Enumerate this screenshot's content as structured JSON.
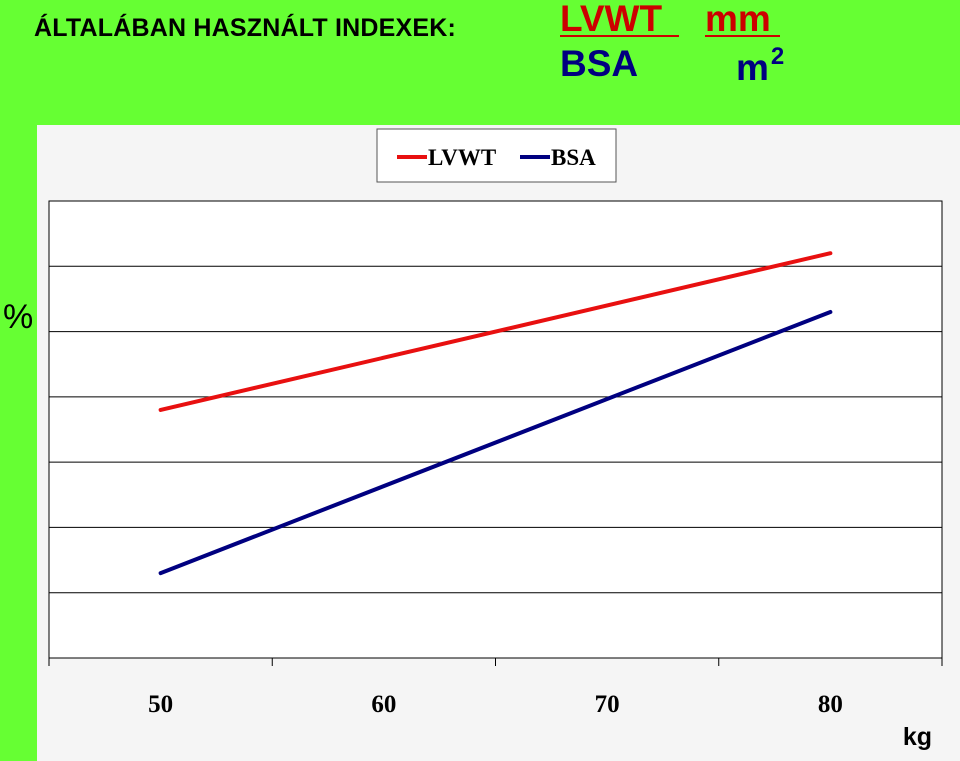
{
  "heading": "ÁLTALÁBAN HASZNÁLT INDEXEK:",
  "fraction": {
    "numerator_label": "LVWT",
    "numerator_unit": "mm",
    "denominator_label": "BSA",
    "denominator_unit": "m",
    "denominator_exponent": "2"
  },
  "colors": {
    "background": "#66ff33",
    "numerator": "#cc0000",
    "denominator": "#000080"
  },
  "chart_data": {
    "type": "line",
    "x": [
      50,
      80
    ],
    "x_ticks": [
      "50",
      "60",
      "70",
      "80"
    ],
    "ylabel": "%",
    "xlabel": "kg",
    "xlim": [
      45,
      85
    ],
    "ylim": [
      0,
      7
    ],
    "grid": true,
    "legend_position": "top",
    "series": [
      {
        "name": "LVWT",
        "color": "#e81010",
        "values": [
          3.8,
          6.2
        ]
      },
      {
        "name": "BSA",
        "color": "#000080",
        "values": [
          1.3,
          5.3
        ]
      }
    ]
  }
}
